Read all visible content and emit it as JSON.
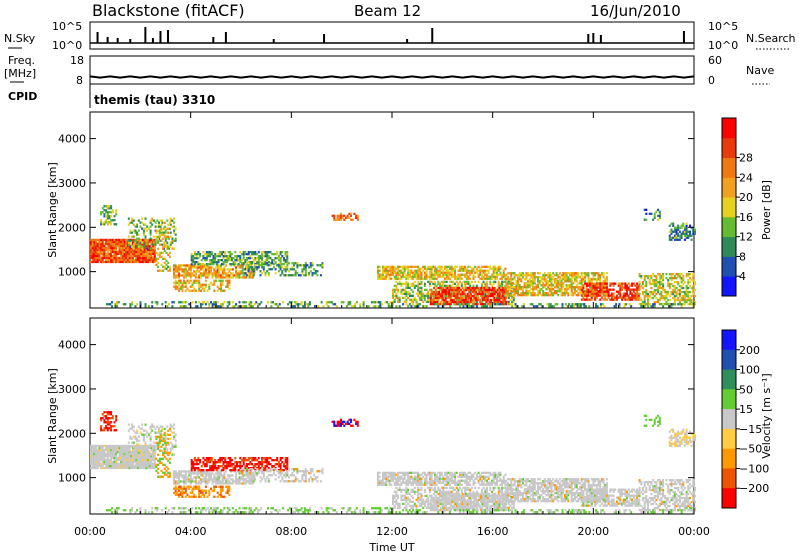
{
  "header": {
    "station": "Blackstone (fitACF)",
    "beam": "Beam 12",
    "date": "16/Jun/2010"
  },
  "left_labels": {
    "nsky": "N.Sky",
    "freq_top": "Freq.",
    "freq_unit": "[MHz]",
    "cpid": "CPID"
  },
  "right_labels": {
    "nsearch": "N.Search",
    "nave": "Nave"
  },
  "cpid_text": "themis (tau) 3310",
  "colors": {
    "power": [
      "#1414ff",
      "#1f4fb0",
      "#2e8b57",
      "#66bb33",
      "#e6d21e",
      "#f0a020",
      "#f07810",
      "#e83a0a",
      "#ff0000"
    ],
    "velocity": [
      "#ff0000",
      "#ee5500",
      "#ff9900",
      "#ffcc44",
      "#c8c8c8",
      "#66cc33",
      "#2f8f5a",
      "#1f4fb0",
      "#1414ff"
    ]
  },
  "chart_data": [
    {
      "type": "line",
      "panel": "noise",
      "left_ticks": [
        "10^5",
        "10^0"
      ],
      "right_ticks": [
        "10^5",
        "10^0"
      ],
      "spikes_x": [
        0.3,
        0.7,
        1.1,
        1.6,
        2.2,
        2.5,
        2.8,
        3.1,
        4.9,
        5.4,
        7.3,
        9.3,
        12.6,
        13.6,
        19.8,
        20.0,
        20.3,
        23.6
      ],
      "spike_heights": [
        0.55,
        0.3,
        0.25,
        0.2,
        0.8,
        0.25,
        0.6,
        0.65,
        0.3,
        0.55,
        0.2,
        0.45,
        0.2,
        0.75,
        0.45,
        0.5,
        0.4,
        0.6
      ]
    },
    {
      "type": "line",
      "panel": "frequency",
      "left_ticks": [
        "18",
        "8"
      ],
      "right_ticks": [
        "60",
        "0"
      ],
      "frequency_mhz": 10.5
    },
    {
      "type": "heatmap",
      "panel": "power",
      "ylabel": "Slant Range [km]",
      "yticks": [
        "1000",
        "2000",
        "3000",
        "4000"
      ],
      "ylim": [
        180,
        4600
      ],
      "xlim": [
        0,
        24
      ],
      "colorbar_label": "Power [dB]",
      "colorbar_ticks": [
        "4",
        "8",
        "12",
        "16",
        "20",
        "24",
        "28"
      ],
      "colorbar_range": [
        0,
        32
      ]
    },
    {
      "type": "heatmap",
      "panel": "velocity",
      "ylabel": "Slant Range [km]",
      "yticks": [
        "1000",
        "2000",
        "3000",
        "4000"
      ],
      "ylim": [
        180,
        4600
      ],
      "xlim": [
        0,
        24
      ],
      "xlabel": "Time UT",
      "xticks": [
        "00:00",
        "04:00",
        "08:00",
        "12:00",
        "16:00",
        "20:00",
        "00:00"
      ],
      "colorbar_label": "Velocity [m s⁻¹]",
      "colorbar_ticks": [
        "200",
        "100",
        "50",
        "15",
        "−15",
        "−50",
        "−100",
        "−200"
      ]
    }
  ]
}
